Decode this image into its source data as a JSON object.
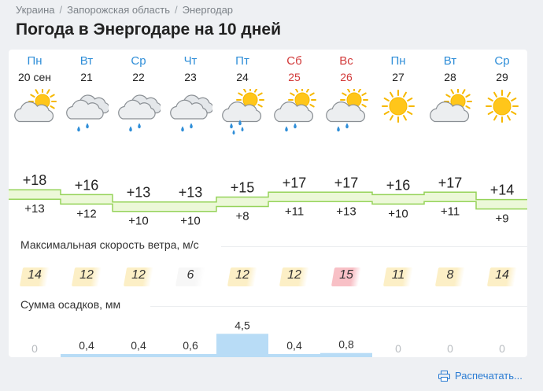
{
  "breadcrumb": [
    "Украина",
    "Запорожская область",
    "Энергодар"
  ],
  "title": "Погода в Энергодаре на 10 дней",
  "days": [
    {
      "dow": "Пн",
      "date": "20 сен",
      "weekend": false,
      "icon": "partly-cloudy",
      "max": "+18",
      "min": "+13",
      "wind": "14",
      "precip": "0"
    },
    {
      "dow": "Вт",
      "date": "21",
      "weekend": false,
      "icon": "cloudy-rain",
      "max": "+16",
      "min": "+12",
      "wind": "12",
      "precip": "0,4"
    },
    {
      "dow": "Ср",
      "date": "22",
      "weekend": false,
      "icon": "cloudy-rain",
      "max": "+13",
      "min": "+10",
      "wind": "12",
      "precip": "0,4"
    },
    {
      "dow": "Чт",
      "date": "23",
      "weekend": false,
      "icon": "cloudy-rain",
      "max": "+13",
      "min": "+10",
      "wind": "6",
      "precip": "0,6"
    },
    {
      "dow": "Пт",
      "date": "24",
      "weekend": false,
      "icon": "sun-cloud-rain",
      "max": "+15",
      "min": "+8",
      "wind": "12",
      "precip": "4,5"
    },
    {
      "dow": "Сб",
      "date": "25",
      "weekend": true,
      "icon": "sun-cloud-light-rain",
      "max": "+17",
      "min": "+11",
      "wind": "12",
      "precip": "0,4"
    },
    {
      "dow": "Вс",
      "date": "26",
      "weekend": true,
      "icon": "sun-cloud-light-rain",
      "max": "+17",
      "min": "+13",
      "wind": "15",
      "precip": "0,8"
    },
    {
      "dow": "Пн",
      "date": "27",
      "weekend": false,
      "icon": "sunny",
      "max": "+16",
      "min": "+10",
      "wind": "11",
      "precip": "0"
    },
    {
      "dow": "Вт",
      "date": "28",
      "weekend": false,
      "icon": "partly-cloudy",
      "max": "+17",
      "min": "+11",
      "wind": "8",
      "precip": "0"
    },
    {
      "dow": "Ср",
      "date": "29",
      "weekend": false,
      "icon": "sunny",
      "max": "+14",
      "min": "+9",
      "wind": "14",
      "precip": "0"
    }
  ],
  "wind_label": "Максимальная скорость ветра, м/с",
  "precip_label": "Сумма осадков, мм",
  "print_label": "Распечатать...",
  "colors": {
    "accent_blue": "#2f8ed8",
    "weekend_red": "#d23a3a",
    "temp_band_fill": "#ecf8d8",
    "temp_band_stroke": "#96d35a",
    "precip_fill": "#b8dcf6",
    "wind_low": "#f7f7f7",
    "wind_mid": "#fcefc6",
    "wind_high": "#f8c0c6"
  }
}
